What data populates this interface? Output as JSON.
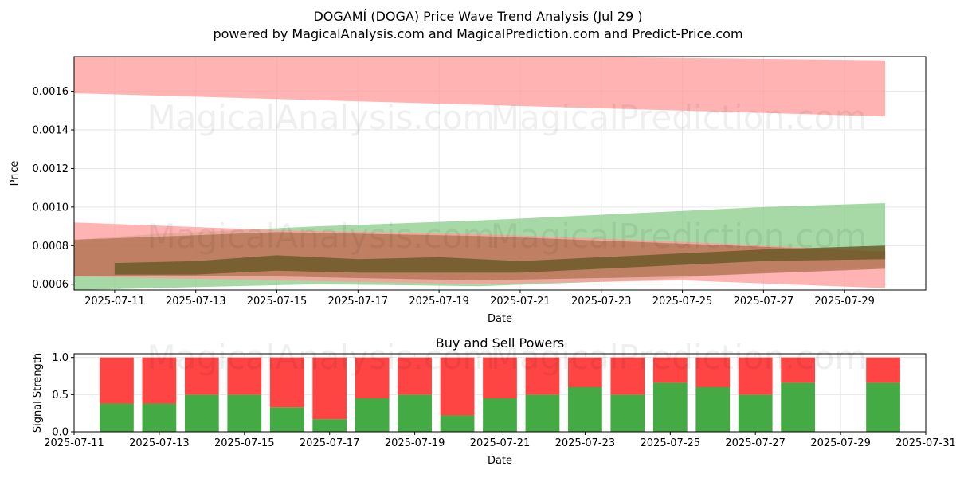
{
  "header": {
    "title": "DOGAMÍ (DOGA) Price Wave Trend Analysis (Jul 29 )",
    "subtitle": "powered by MagicalAnalysis.com and MagicalPrediction.com and Predict-Price.com"
  },
  "watermarks": [
    "MagicalAnalysis.com",
    "MagicalPrediction.com"
  ],
  "colors": {
    "red": "#ff4444",
    "green": "#44aa44",
    "red_band": "#ff9999",
    "green_band": "#88cc88",
    "brown_band": "#b07050",
    "olive_line": "#6b5a2a"
  },
  "chart_data": [
    {
      "type": "area",
      "title": "",
      "xlabel": "Date",
      "ylabel": "Price",
      "xlim": [
        "2025-07-10",
        "2025-07-31"
      ],
      "ylim": [
        0.00057,
        0.00178
      ],
      "x_ticks": [
        "2025-07-11",
        "2025-07-13",
        "2025-07-15",
        "2025-07-17",
        "2025-07-19",
        "2025-07-21",
        "2025-07-23",
        "2025-07-25",
        "2025-07-27",
        "2025-07-29"
      ],
      "y_ticks": [
        "0.0006",
        "0.0008",
        "0.0010",
        "0.0012",
        "0.0014",
        "0.0016"
      ],
      "y_tick_values": [
        0.0006,
        0.0008,
        0.001,
        0.0012,
        0.0014,
        0.0016
      ],
      "grid": true,
      "bands": [
        {
          "color": "red",
          "x": [
            "2025-07-10",
            "2025-07-30"
          ],
          "upper": [
            0.00181,
            0.00176
          ],
          "lower": [
            0.00159,
            0.00147
          ]
        },
        {
          "color": "green",
          "x": [
            "2025-07-10",
            "2025-07-12",
            "2025-07-16",
            "2025-07-20",
            "2025-07-24",
            "2025-07-27",
            "2025-07-30"
          ],
          "upper": [
            0.00083,
            0.00086,
            0.0009,
            0.00093,
            0.00097,
            0.001,
            0.00102
          ],
          "lower": [
            0.00057,
            0.00058,
            0.0006,
            0.00059,
            0.00062,
            0.00066,
            0.00069
          ]
        },
        {
          "color": "red",
          "x": [
            "2025-07-10",
            "2025-07-15",
            "2025-07-20",
            "2025-07-25",
            "2025-07-30"
          ],
          "upper": [
            0.00092,
            0.00088,
            0.00086,
            0.00082,
            0.00077
          ],
          "lower": [
            0.00064,
            0.00062,
            0.0006,
            0.00062,
            0.00058
          ]
        },
        {
          "color": "brown",
          "x": [
            "2025-07-10",
            "2025-07-15",
            "2025-07-20",
            "2025-07-25",
            "2025-07-30"
          ],
          "upper": [
            0.00083,
            0.00087,
            0.00085,
            0.00081,
            0.00077
          ],
          "lower": [
            0.00064,
            0.00064,
            0.00062,
            0.00064,
            0.00068
          ]
        }
      ],
      "trend_line": {
        "x": [
          "2025-07-11",
          "2025-07-13",
          "2025-07-15",
          "2025-07-17",
          "2025-07-19",
          "2025-07-21",
          "2025-07-23",
          "2025-07-25",
          "2025-07-27",
          "2025-07-30"
        ],
        "upper": [
          0.00071,
          0.00072,
          0.00075,
          0.00073,
          0.00074,
          0.00072,
          0.00074,
          0.00076,
          0.00078,
          0.0008
        ],
        "lower": [
          0.00065,
          0.00065,
          0.00067,
          0.00066,
          0.00066,
          0.00066,
          0.00068,
          0.0007,
          0.00072,
          0.00073
        ]
      }
    },
    {
      "type": "bar",
      "title": "Buy and Sell Powers",
      "xlabel": "Date",
      "ylabel": "Signal Strength",
      "xlim": [
        "2025-07-11",
        "2025-07-31"
      ],
      "ylim": [
        0,
        1.05
      ],
      "x_ticks": [
        "2025-07-11",
        "2025-07-13",
        "2025-07-15",
        "2025-07-17",
        "2025-07-19",
        "2025-07-21",
        "2025-07-23",
        "2025-07-25",
        "2025-07-27",
        "2025-07-29",
        "2025-07-31"
      ],
      "y_ticks": [
        "0.0",
        "0.5",
        "1.0"
      ],
      "y_tick_values": [
        0,
        0.5,
        1.0
      ],
      "grid": true,
      "categories": [
        "2025-07-12",
        "2025-07-13",
        "2025-07-14",
        "2025-07-15",
        "2025-07-16",
        "2025-07-17",
        "2025-07-18",
        "2025-07-19",
        "2025-07-20",
        "2025-07-21",
        "2025-07-22",
        "2025-07-23",
        "2025-07-24",
        "2025-07-25",
        "2025-07-26",
        "2025-07-27",
        "2025-07-28",
        "2025-07-30"
      ],
      "series": [
        {
          "color": "green",
          "values": [
            0.38,
            0.38,
            0.5,
            0.5,
            0.33,
            0.17,
            0.45,
            0.5,
            0.22,
            0.45,
            0.5,
            0.6,
            0.5,
            0.66,
            0.6,
            0.5,
            0.66,
            0.66
          ]
        },
        {
          "color": "red",
          "values": [
            0.62,
            0.62,
            0.5,
            0.5,
            0.67,
            0.83,
            0.55,
            0.5,
            0.78,
            0.55,
            0.5,
            0.4,
            0.5,
            0.34,
            0.4,
            0.5,
            0.34,
            0.34
          ]
        }
      ]
    }
  ]
}
